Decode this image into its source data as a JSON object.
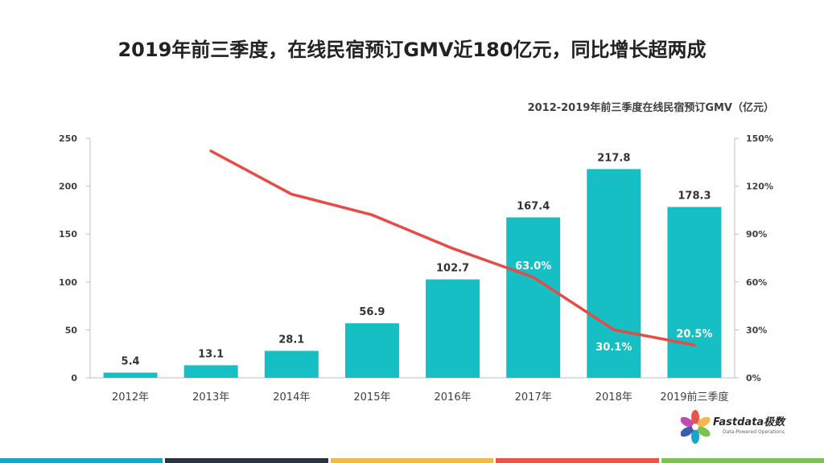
{
  "headline": "2019年前三季度，在线民宿预订GMV近180亿元，同比增长超两成",
  "logo": {
    "brand": "Fastdata极数",
    "tagline": "Data-Powered Operations"
  },
  "footer_colors": [
    "#16a6c9",
    "#2b3440",
    "#f2b84b",
    "#e8564b",
    "#7cc152"
  ],
  "chart_data": {
    "type": "bar",
    "title": "2012-2019年前三季度在线民宿预订GMV（亿元）",
    "categories": [
      "2012年",
      "2013年",
      "2014年",
      "2015年",
      "2016年",
      "2017年",
      "2018年",
      "2019前三季度"
    ],
    "series": [
      {
        "type": "bar",
        "axis": "left",
        "color": "#16bfc4",
        "values": [
          5.4,
          13.1,
          28.1,
          56.9,
          102.7,
          167.4,
          217.8,
          178.3
        ],
        "labels": [
          "5.4",
          "13.1",
          "28.1",
          "56.9",
          "102.7",
          "167.4",
          "217.8",
          "178.3"
        ]
      },
      {
        "type": "line",
        "axis": "right",
        "color": "#e84a45",
        "values": [
          null,
          142,
          115,
          102,
          81,
          63.0,
          30.1,
          20.5
        ],
        "labels": [
          null,
          null,
          null,
          null,
          null,
          "63.0%",
          "30.1%",
          "20.5%"
        ]
      }
    ],
    "y_left": {
      "min": 0,
      "max": 250,
      "ticks": [
        0,
        50,
        100,
        150,
        200,
        250
      ],
      "tick_labels": [
        "0",
        "50",
        "100",
        "150",
        "200",
        "250"
      ]
    },
    "y_right": {
      "min": 0,
      "max": 150,
      "ticks": [
        0,
        30,
        60,
        90,
        120,
        150
      ],
      "tick_labels": [
        "0%",
        "30%",
        "60%",
        "90%",
        "120%",
        "150%"
      ]
    },
    "grid": false
  }
}
